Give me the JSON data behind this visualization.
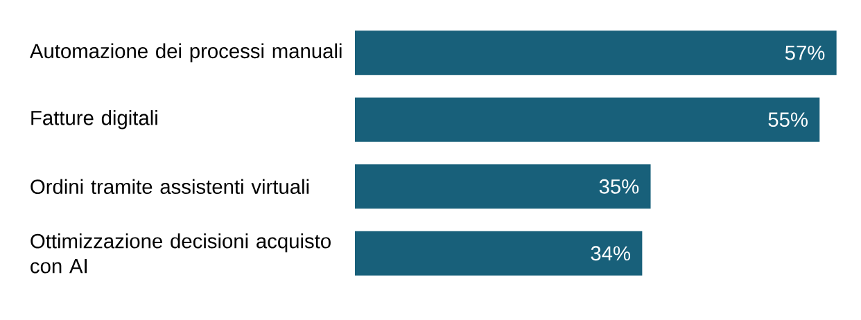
{
  "chart_data": {
    "type": "bar",
    "orientation": "horizontal",
    "categories": [
      "Automazione dei processi manuali",
      "Fatture digitali",
      "Ordini tramite assistenti virtuali",
      "Ottimizzazione decisioni acquisto con AI"
    ],
    "values": [
      57,
      55,
      35,
      34
    ],
    "value_labels": [
      "57%",
      "55%",
      "35%",
      "34%"
    ],
    "color": "#18607a"
  }
}
